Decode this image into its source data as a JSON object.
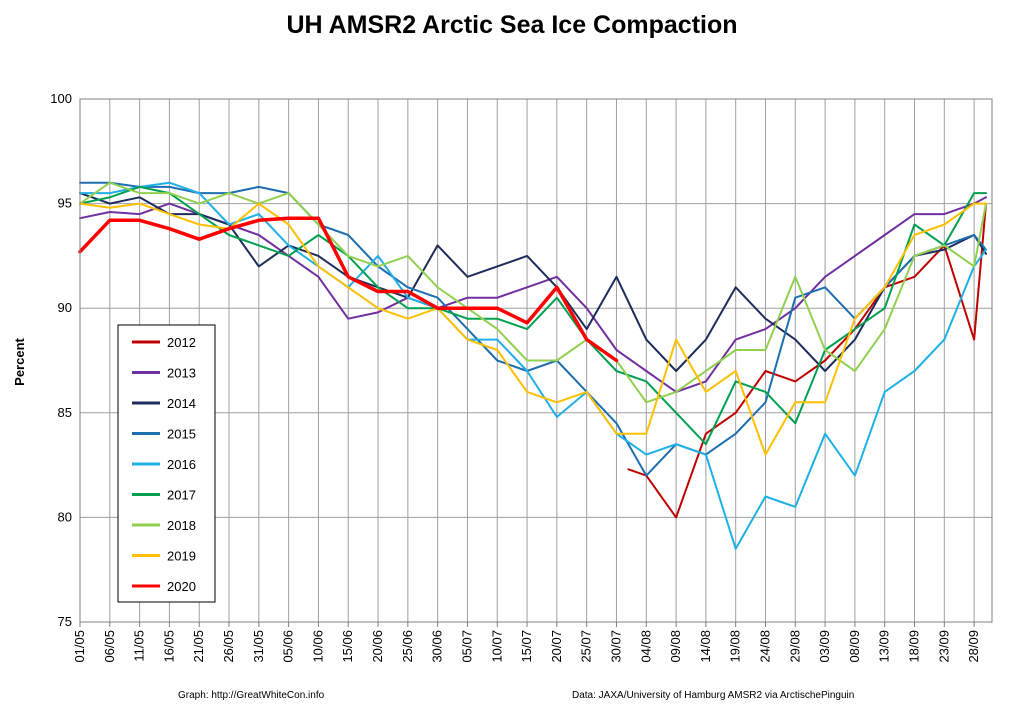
{
  "chart_data": {
    "type": "line",
    "title": "UH AMSR2 Arctic Sea Ice Compaction",
    "xlabel": "",
    "ylabel": "Percent",
    "ylim": [
      75,
      100
    ],
    "yticks": [
      75,
      80,
      85,
      90,
      95,
      100
    ],
    "grid": true,
    "x_start_label": "01/05",
    "x_end_label": "01/10",
    "xtick_labels": [
      "01/05",
      "06/05",
      "11/05",
      "16/05",
      "21/05",
      "26/05",
      "31/05",
      "05/06",
      "10/06",
      "15/06",
      "20/06",
      "25/06",
      "30/06",
      "05/07",
      "10/07",
      "15/07",
      "20/07",
      "25/07",
      "30/07",
      "04/08",
      "09/08",
      "14/08",
      "19/08",
      "24/08",
      "29/08",
      "03/09",
      "08/09",
      "13/09",
      "18/09",
      "23/09",
      "28/09"
    ],
    "legend_position": "left",
    "series": [
      {
        "name": "2012",
        "color": "#c00000",
        "x": [
          "01/08",
          "04/08",
          "09/08",
          "14/08",
          "19/08",
          "24/08",
          "29/08",
          "03/09",
          "08/09",
          "13/09",
          "18/09",
          "23/09",
          "28/09",
          "30/09"
        ],
        "y": [
          82.3,
          82.0,
          80.0,
          84.0,
          85.0,
          87.0,
          86.5,
          87.5,
          89.0,
          91.0,
          91.5,
          93.0,
          88.5,
          95.0
        ]
      },
      {
        "name": "2013",
        "color": "#7030a0",
        "x": [
          "01/05",
          "06/05",
          "11/05",
          "16/05",
          "21/05",
          "26/05",
          "31/05",
          "05/06",
          "10/06",
          "15/06",
          "20/06",
          "25/06",
          "30/06",
          "05/07",
          "10/07",
          "15/07",
          "20/07",
          "25/07",
          "30/07",
          "04/08",
          "09/08",
          "14/08",
          "19/08",
          "24/08",
          "29/08",
          "03/09",
          "08/09",
          "13/09",
          "18/09",
          "23/09",
          "28/09",
          "30/09"
        ],
        "y": [
          94.3,
          94.6,
          94.5,
          95.0,
          94.5,
          94.0,
          93.5,
          92.5,
          91.5,
          89.5,
          89.8,
          90.5,
          90.0,
          90.5,
          90.5,
          91.0,
          91.5,
          90.0,
          88.0,
          87.0,
          86.0,
          86.5,
          88.5,
          89.0,
          90.0,
          91.5,
          92.5,
          93.5,
          94.5,
          94.5,
          95.0,
          95.3
        ]
      },
      {
        "name": "2014",
        "color": "#1f2d5c",
        "x": [
          "01/05",
          "06/05",
          "11/05",
          "16/05",
          "21/05",
          "26/05",
          "31/05",
          "05/06",
          "10/06",
          "15/06",
          "20/06",
          "25/06",
          "30/06",
          "05/07",
          "10/07",
          "15/07",
          "20/07",
          "25/07",
          "30/07",
          "04/08",
          "09/08",
          "14/08",
          "19/08",
          "24/08",
          "29/08",
          "03/09",
          "08/09",
          "13/09",
          "18/09",
          "23/09",
          "28/09",
          "30/09"
        ],
        "y": [
          95.5,
          95.0,
          95.3,
          94.5,
          94.5,
          94.0,
          92.0,
          93.0,
          92.5,
          91.5,
          91.0,
          90.5,
          93.0,
          91.5,
          92.0,
          92.5,
          91.0,
          89.0,
          91.5,
          88.5,
          87.0,
          88.5,
          91.0,
          89.5,
          88.5,
          87.0,
          88.5,
          91.0,
          92.5,
          92.8,
          93.5,
          92.6
        ]
      },
      {
        "name": "2015",
        "color": "#1f6eb0",
        "x": [
          "01/05",
          "06/05",
          "11/05",
          "16/05",
          "21/05",
          "26/05",
          "31/05",
          "05/06",
          "10/06",
          "15/06",
          "20/06",
          "25/06",
          "30/06",
          "05/07",
          "10/07",
          "15/07",
          "20/07",
          "25/07",
          "30/07",
          "04/08",
          "09/08",
          "14/08",
          "19/08",
          "24/08",
          "29/08",
          "03/09",
          "08/09",
          "13/09",
          "18/09",
          "23/09",
          "28/09",
          "30/09"
        ],
        "y": [
          96.0,
          96.0,
          95.8,
          95.8,
          95.5,
          95.5,
          95.8,
          95.5,
          94.0,
          93.5,
          92.0,
          91.0,
          90.5,
          89.0,
          87.5,
          87.0,
          87.5,
          86.0,
          84.5,
          82.0,
          83.5,
          83.0,
          84.0,
          85.5,
          90.5,
          91.0,
          89.5,
          91.0,
          92.5,
          93.0,
          93.5,
          92.8
        ]
      },
      {
        "name": "2016",
        "color": "#1eb0e6",
        "x": [
          "01/05",
          "06/05",
          "11/05",
          "16/05",
          "21/05",
          "26/05",
          "31/05",
          "05/06",
          "10/06",
          "15/06",
          "20/06",
          "25/06",
          "30/06",
          "05/07",
          "10/07",
          "15/07",
          "20/07",
          "25/07",
          "30/07",
          "04/08",
          "09/08",
          "14/08",
          "19/08",
          "24/08",
          "29/08",
          "03/09",
          "08/09",
          "13/09",
          "18/09",
          "23/09",
          "28/09",
          "30/09"
        ],
        "y": [
          95.5,
          95.5,
          95.8,
          96.0,
          95.5,
          94.0,
          94.5,
          93.0,
          92.0,
          91.0,
          92.5,
          90.5,
          90.0,
          88.5,
          88.5,
          87.0,
          84.8,
          86.0,
          84.0,
          83.0,
          83.5,
          83.0,
          78.5,
          81.0,
          80.5,
          84.0,
          82.0,
          86.0,
          87.0,
          88.5,
          92.0,
          92.8
        ]
      },
      {
        "name": "2017",
        "color": "#00a050",
        "x": [
          "01/05",
          "06/05",
          "11/05",
          "16/05",
          "21/05",
          "26/05",
          "31/05",
          "05/06",
          "10/06",
          "15/06",
          "20/06",
          "25/06",
          "30/06",
          "05/07",
          "10/07",
          "15/07",
          "20/07",
          "25/07",
          "30/07",
          "04/08",
          "09/08",
          "14/08",
          "19/08",
          "24/08",
          "29/08",
          "03/09",
          "08/09",
          "13/09",
          "18/09",
          "23/09",
          "28/09",
          "30/09"
        ],
        "y": [
          95.0,
          95.3,
          95.8,
          95.5,
          94.5,
          93.5,
          93.0,
          92.5,
          93.5,
          92.5,
          91.0,
          90.0,
          90.0,
          89.5,
          89.5,
          89.0,
          90.5,
          88.5,
          87.0,
          86.5,
          85.0,
          83.5,
          86.5,
          86.0,
          84.5,
          88.0,
          89.0,
          90.0,
          94.0,
          93.0,
          95.5,
          95.5
        ]
      },
      {
        "name": "2018",
        "color": "#92d050",
        "x": [
          "01/05",
          "06/05",
          "11/05",
          "16/05",
          "21/05",
          "26/05",
          "31/05",
          "05/06",
          "10/06",
          "15/06",
          "20/06",
          "25/06",
          "30/06",
          "05/07",
          "10/07",
          "15/07",
          "20/07",
          "25/07",
          "30/07",
          "04/08",
          "09/08",
          "14/08",
          "19/08",
          "24/08",
          "29/08",
          "03/09",
          "08/09",
          "13/09",
          "18/09",
          "23/09",
          "28/09",
          "30/09"
        ],
        "y": [
          95.0,
          96.0,
          95.5,
          95.5,
          95.0,
          95.5,
          95.0,
          95.5,
          94.0,
          92.5,
          92.0,
          92.5,
          91.0,
          90.0,
          89.0,
          87.5,
          87.5,
          88.5,
          87.5,
          85.5,
          86.0,
          87.0,
          88.0,
          88.0,
          91.5,
          88.0,
          87.0,
          89.0,
          92.5,
          93.0,
          92.0,
          95.0
        ]
      },
      {
        "name": "2019",
        "color": "#ffc000",
        "x": [
          "01/05",
          "06/05",
          "11/05",
          "16/05",
          "21/05",
          "26/05",
          "31/05",
          "05/06",
          "10/06",
          "15/06",
          "20/06",
          "25/06",
          "30/06",
          "05/07",
          "10/07",
          "15/07",
          "20/07",
          "25/07",
          "30/07",
          "04/08",
          "09/08",
          "14/08",
          "19/08",
          "24/08",
          "29/08",
          "03/09",
          "08/09",
          "13/09",
          "18/09",
          "23/09",
          "28/09",
          "30/09"
        ],
        "y": [
          95.0,
          94.8,
          95.0,
          94.5,
          94.0,
          93.8,
          95.0,
          94.0,
          92.0,
          91.0,
          90.0,
          89.5,
          90.0,
          88.5,
          88.0,
          86.0,
          85.5,
          86.0,
          84.0,
          84.0,
          88.5,
          86.0,
          87.0,
          83.0,
          85.5,
          85.5,
          89.5,
          91.0,
          93.5,
          94.0,
          95.0,
          95.0
        ]
      },
      {
        "name": "2020",
        "color": "#ff0000",
        "width": 3.5,
        "x": [
          "01/05",
          "06/05",
          "11/05",
          "16/05",
          "21/05",
          "26/05",
          "31/05",
          "05/06",
          "10/06",
          "15/06",
          "20/06",
          "25/06",
          "30/06",
          "05/07",
          "10/07",
          "15/07",
          "20/07",
          "25/07",
          "30/07"
        ],
        "y": [
          92.7,
          94.2,
          94.2,
          93.8,
          93.3,
          93.8,
          94.2,
          94.3,
          94.3,
          91.5,
          90.8,
          90.8,
          90.0,
          90.0,
          90.0,
          89.3,
          91.0,
          88.5,
          87.5
        ]
      }
    ],
    "credits": {
      "left": "Graph: http://GreatWhiteCon.info",
      "right": "Data: JAXA/University of Hamburg AMSR2  via  ArctischePinguin"
    }
  }
}
